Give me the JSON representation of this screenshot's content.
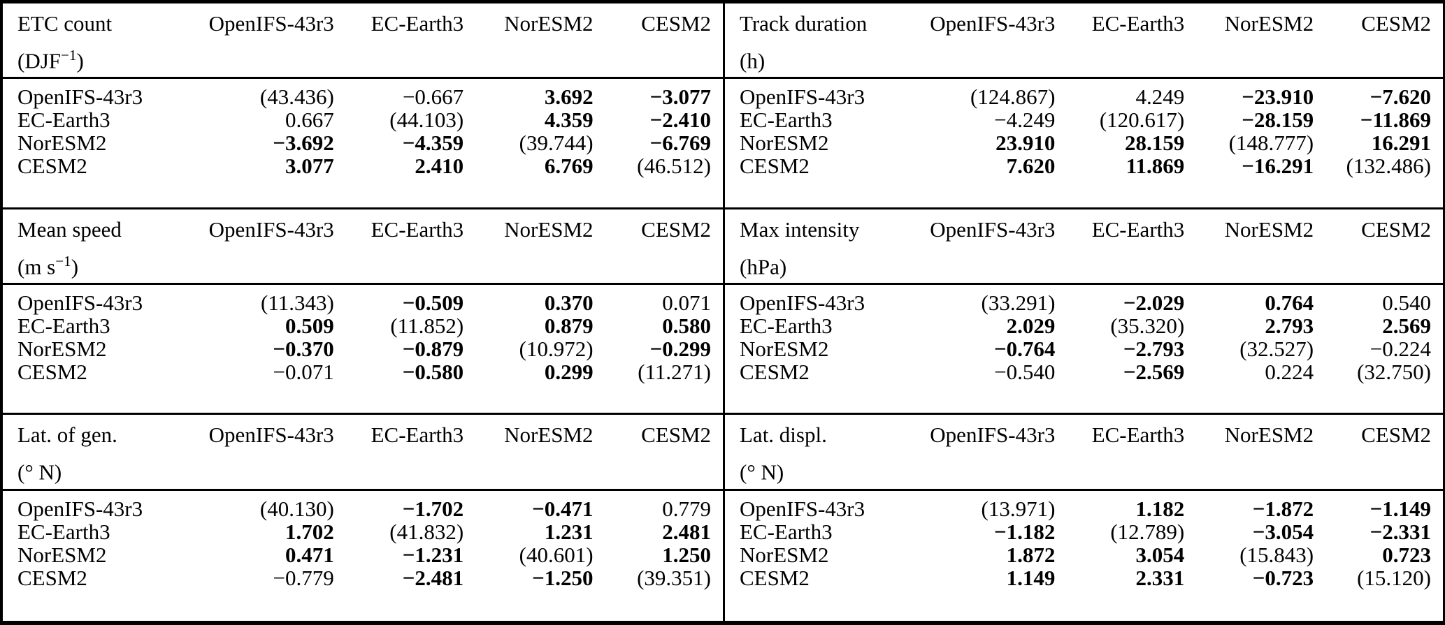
{
  "models": [
    "OpenIFS-43r3",
    "EC-Earth3",
    "NorESM2",
    "CESM2"
  ],
  "panels": [
    {
      "title": "ETC count",
      "unit": {
        "pre": "(DJF",
        "sup": "−1",
        "post": ")"
      },
      "rows": [
        {
          "label": "OpenIFS-43r3",
          "cells": [
            {
              "v": "(43.436)",
              "b": "0"
            },
            {
              "v": "−0.667",
              "b": "0"
            },
            {
              "v": "3.692",
              "b": "1"
            },
            {
              "v": "−3.077",
              "b": "1"
            }
          ]
        },
        {
          "label": "EC-Earth3",
          "cells": [
            {
              "v": "0.667",
              "b": "0"
            },
            {
              "v": "(44.103)",
              "b": "0"
            },
            {
              "v": "4.359",
              "b": "1"
            },
            {
              "v": "−2.410",
              "b": "1"
            }
          ]
        },
        {
          "label": "NorESM2",
          "cells": [
            {
              "v": "−3.692",
              "b": "1"
            },
            {
              "v": "−4.359",
              "b": "1"
            },
            {
              "v": "(39.744)",
              "b": "0"
            },
            {
              "v": "−6.769",
              "b": "1"
            }
          ]
        },
        {
          "label": "CESM2",
          "cells": [
            {
              "v": "3.077",
              "b": "1"
            },
            {
              "v": "2.410",
              "b": "1"
            },
            {
              "v": "6.769",
              "b": "1"
            },
            {
              "v": "(46.512)",
              "b": "0"
            }
          ]
        }
      ]
    },
    {
      "title": "Track duration",
      "unit": {
        "pre": "(h)",
        "sup": "",
        "post": ""
      },
      "rows": [
        {
          "label": "OpenIFS-43r3",
          "cells": [
            {
              "v": "(124.867)",
              "b": "0"
            },
            {
              "v": "4.249",
              "b": "0"
            },
            {
              "v": "−23.910",
              "b": "1"
            },
            {
              "v": "−7.620",
              "b": "1"
            }
          ]
        },
        {
          "label": "EC-Earth3",
          "cells": [
            {
              "v": "−4.249",
              "b": "0"
            },
            {
              "v": "(120.617)",
              "b": "0"
            },
            {
              "v": "−28.159",
              "b": "1"
            },
            {
              "v": "−11.869",
              "b": "1"
            }
          ]
        },
        {
          "label": "NorESM2",
          "cells": [
            {
              "v": "23.910",
              "b": "1"
            },
            {
              "v": "28.159",
              "b": "1"
            },
            {
              "v": "(148.777)",
              "b": "0"
            },
            {
              "v": "16.291",
              "b": "1"
            }
          ]
        },
        {
          "label": "CESM2",
          "cells": [
            {
              "v": "7.620",
              "b": "1"
            },
            {
              "v": "11.869",
              "b": "1"
            },
            {
              "v": "−16.291",
              "b": "1"
            },
            {
              "v": "(132.486)",
              "b": "0"
            }
          ]
        }
      ]
    },
    {
      "title": "Mean speed",
      "unit": {
        "pre": "(m s",
        "sup": "−1",
        "post": ")"
      },
      "rows": [
        {
          "label": "OpenIFS-43r3",
          "cells": [
            {
              "v": "(11.343)",
              "b": "0"
            },
            {
              "v": "−0.509",
              "b": "1"
            },
            {
              "v": "0.370",
              "b": "1"
            },
            {
              "v": "0.071",
              "b": "0"
            }
          ]
        },
        {
          "label": "EC-Earth3",
          "cells": [
            {
              "v": "0.509",
              "b": "1"
            },
            {
              "v": "(11.852)",
              "b": "0"
            },
            {
              "v": "0.879",
              "b": "1"
            },
            {
              "v": "0.580",
              "b": "1"
            }
          ]
        },
        {
          "label": "NorESM2",
          "cells": [
            {
              "v": "−0.370",
              "b": "1"
            },
            {
              "v": "−0.879",
              "b": "1"
            },
            {
              "v": "(10.972)",
              "b": "0"
            },
            {
              "v": "−0.299",
              "b": "1"
            }
          ]
        },
        {
          "label": "CESM2",
          "cells": [
            {
              "v": "−0.071",
              "b": "0"
            },
            {
              "v": "−0.580",
              "b": "1"
            },
            {
              "v": "0.299",
              "b": "1"
            },
            {
              "v": "(11.271)",
              "b": "0"
            }
          ]
        }
      ]
    },
    {
      "title": "Max intensity",
      "unit": {
        "pre": "(hPa)",
        "sup": "",
        "post": ""
      },
      "rows": [
        {
          "label": "OpenIFS-43r3",
          "cells": [
            {
              "v": "(33.291)",
              "b": "0"
            },
            {
              "v": "−2.029",
              "b": "1"
            },
            {
              "v": "0.764",
              "b": "1"
            },
            {
              "v": "0.540",
              "b": "0"
            }
          ]
        },
        {
          "label": "EC-Earth3",
          "cells": [
            {
              "v": "2.029",
              "b": "1"
            },
            {
              "v": "(35.320)",
              "b": "0"
            },
            {
              "v": "2.793",
              "b": "1"
            },
            {
              "v": "2.569",
              "b": "1"
            }
          ]
        },
        {
          "label": "NorESM2",
          "cells": [
            {
              "v": "−0.764",
              "b": "1"
            },
            {
              "v": "−2.793",
              "b": "1"
            },
            {
              "v": "(32.527)",
              "b": "0"
            },
            {
              "v": "−0.224",
              "b": "0"
            }
          ]
        },
        {
          "label": "CESM2",
          "cells": [
            {
              "v": "−0.540",
              "b": "0"
            },
            {
              "v": "−2.569",
              "b": "1"
            },
            {
              "v": "0.224",
              "b": "0"
            },
            {
              "v": "(32.750)",
              "b": "0"
            }
          ]
        }
      ]
    },
    {
      "title": "Lat. of gen.",
      "unit": {
        "pre": "(° N)",
        "sup": "",
        "post": ""
      },
      "rows": [
        {
          "label": "OpenIFS-43r3",
          "cells": [
            {
              "v": "(40.130)",
              "b": "0"
            },
            {
              "v": "−1.702",
              "b": "1"
            },
            {
              "v": "−0.471",
              "b": "1"
            },
            {
              "v": "0.779",
              "b": "0"
            }
          ]
        },
        {
          "label": "EC-Earth3",
          "cells": [
            {
              "v": "1.702",
              "b": "1"
            },
            {
              "v": "(41.832)",
              "b": "0"
            },
            {
              "v": "1.231",
              "b": "1"
            },
            {
              "v": "2.481",
              "b": "1"
            }
          ]
        },
        {
          "label": "NorESM2",
          "cells": [
            {
              "v": "0.471",
              "b": "1"
            },
            {
              "v": "−1.231",
              "b": "1"
            },
            {
              "v": "(40.601)",
              "b": "0"
            },
            {
              "v": "1.250",
              "b": "1"
            }
          ]
        },
        {
          "label": "CESM2",
          "cells": [
            {
              "v": "−0.779",
              "b": "0"
            },
            {
              "v": "−2.481",
              "b": "1"
            },
            {
              "v": "−1.250",
              "b": "1"
            },
            {
              "v": "(39.351)",
              "b": "0"
            }
          ]
        }
      ]
    },
    {
      "title": "Lat. displ.",
      "unit": {
        "pre": "(° N)",
        "sup": "",
        "post": ""
      },
      "rows": [
        {
          "label": "OpenIFS-43r3",
          "cells": [
            {
              "v": "(13.971)",
              "b": "0"
            },
            {
              "v": "1.182",
              "b": "1"
            },
            {
              "v": "−1.872",
              "b": "1"
            },
            {
              "v": "−1.149",
              "b": "1"
            }
          ]
        },
        {
          "label": "EC-Earth3",
          "cells": [
            {
              "v": "−1.182",
              "b": "1"
            },
            {
              "v": "(12.789)",
              "b": "0"
            },
            {
              "v": "−3.054",
              "b": "1"
            },
            {
              "v": "−2.331",
              "b": "1"
            }
          ]
        },
        {
          "label": "NorESM2",
          "cells": [
            {
              "v": "1.872",
              "b": "1"
            },
            {
              "v": "3.054",
              "b": "1"
            },
            {
              "v": "(15.843)",
              "b": "0"
            },
            {
              "v": "0.723",
              "b": "1"
            }
          ]
        },
        {
          "label": "CESM2",
          "cells": [
            {
              "v": "1.149",
              "b": "1"
            },
            {
              "v": "2.331",
              "b": "1"
            },
            {
              "v": "−0.723",
              "b": "1"
            },
            {
              "v": "(15.120)",
              "b": "0"
            }
          ]
        }
      ]
    }
  ],
  "style": {
    "rule_color": "#000000",
    "text_color": "#000000",
    "background": "#ffffff"
  }
}
